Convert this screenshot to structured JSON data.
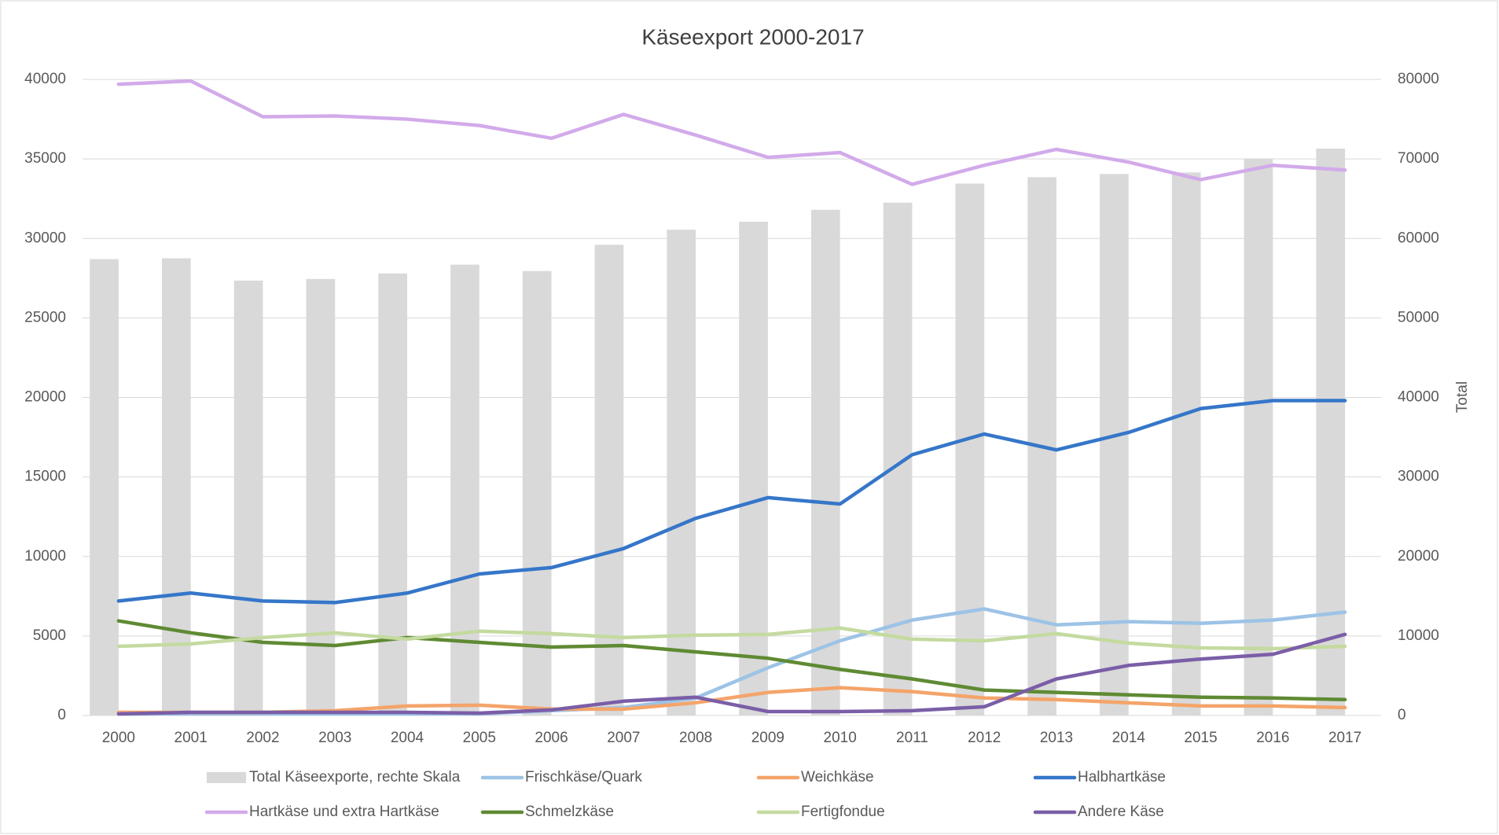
{
  "chart_data": {
    "type": "combo",
    "title": "Käseexport 2000-2017",
    "y2label": "Total",
    "categories": [
      "2000",
      "2001",
      "2002",
      "2003",
      "2004",
      "2005",
      "2006",
      "2007",
      "2008",
      "2009",
      "2010",
      "2011",
      "2012",
      "2013",
      "2014",
      "2015",
      "2016",
      "2017"
    ],
    "ylim": [
      0,
      40000
    ],
    "yticks": [
      0,
      5000,
      10000,
      15000,
      20000,
      25000,
      30000,
      35000,
      40000
    ],
    "y2lim": [
      0,
      80000
    ],
    "y2ticks": [
      0,
      10000,
      20000,
      30000,
      40000,
      50000,
      60000,
      70000,
      80000
    ],
    "grid": true,
    "legend": "bottom",
    "series": [
      {
        "name": "Total Käseexporte, rechte Skala",
        "type": "bar",
        "axis": "y2",
        "color": "#d9d9d9",
        "values": [
          57400,
          57500,
          54700,
          54900,
          55600,
          56700,
          55900,
          59200,
          61100,
          62100,
          63600,
          64500,
          66900,
          67700,
          68100,
          68300,
          70000,
          71300
        ]
      },
      {
        "name": "Frischkäse/Quark",
        "type": "line",
        "color": "#9dc3e6",
        "values": [
          100,
          100,
          100,
          100,
          100,
          100,
          300,
          500,
          1100,
          3000,
          4700,
          6000,
          6700,
          5700,
          5900,
          5800,
          6000,
          6500
        ]
      },
      {
        "name": "Weichkäse",
        "type": "line",
        "color": "#f4a46a",
        "values": [
          200,
          200,
          200,
          300,
          600,
          650,
          400,
          400,
          800,
          1450,
          1750,
          1500,
          1100,
          1000,
          800,
          600,
          600,
          500
        ]
      },
      {
        "name": "Halbhartkäse",
        "type": "line",
        "color": "#3576c9",
        "values": [
          7200,
          7700,
          7200,
          7100,
          7700,
          8900,
          9300,
          10500,
          12400,
          13700,
          13300,
          16400,
          17700,
          16700,
          17800,
          19300,
          19800,
          19800
        ]
      },
      {
        "name": "Hartkäse und extra Hartkäse",
        "type": "line",
        "color": "#d2aaea",
        "values": [
          39700,
          39900,
          37650,
          37700,
          37500,
          37100,
          36300,
          37800,
          36500,
          35100,
          35400,
          33400,
          34600,
          35600,
          34800,
          33700,
          34600,
          34300
        ]
      },
      {
        "name": "Schmelzkäse",
        "type": "line",
        "color": "#5f8a33",
        "values": [
          5950,
          5200,
          4600,
          4400,
          4900,
          4600,
          4300,
          4400,
          4000,
          3600,
          2900,
          2300,
          1600,
          1450,
          1300,
          1150,
          1100,
          1000
        ]
      },
      {
        "name": "Fertigfondue",
        "type": "line",
        "color": "#c4daa0",
        "values": [
          4350,
          4500,
          4900,
          5200,
          4800,
          5300,
          5150,
          4900,
          5050,
          5100,
          5500,
          4800,
          4700,
          5150,
          4550,
          4250,
          4200,
          4350
        ]
      },
      {
        "name": "Andere Käse",
        "type": "line",
        "color": "#7b5ea7",
        "values": [
          100,
          200,
          200,
          200,
          200,
          150,
          350,
          900,
          1150,
          250,
          250,
          300,
          550,
          2300,
          3150,
          3550,
          3850,
          5100
        ]
      }
    ]
  }
}
